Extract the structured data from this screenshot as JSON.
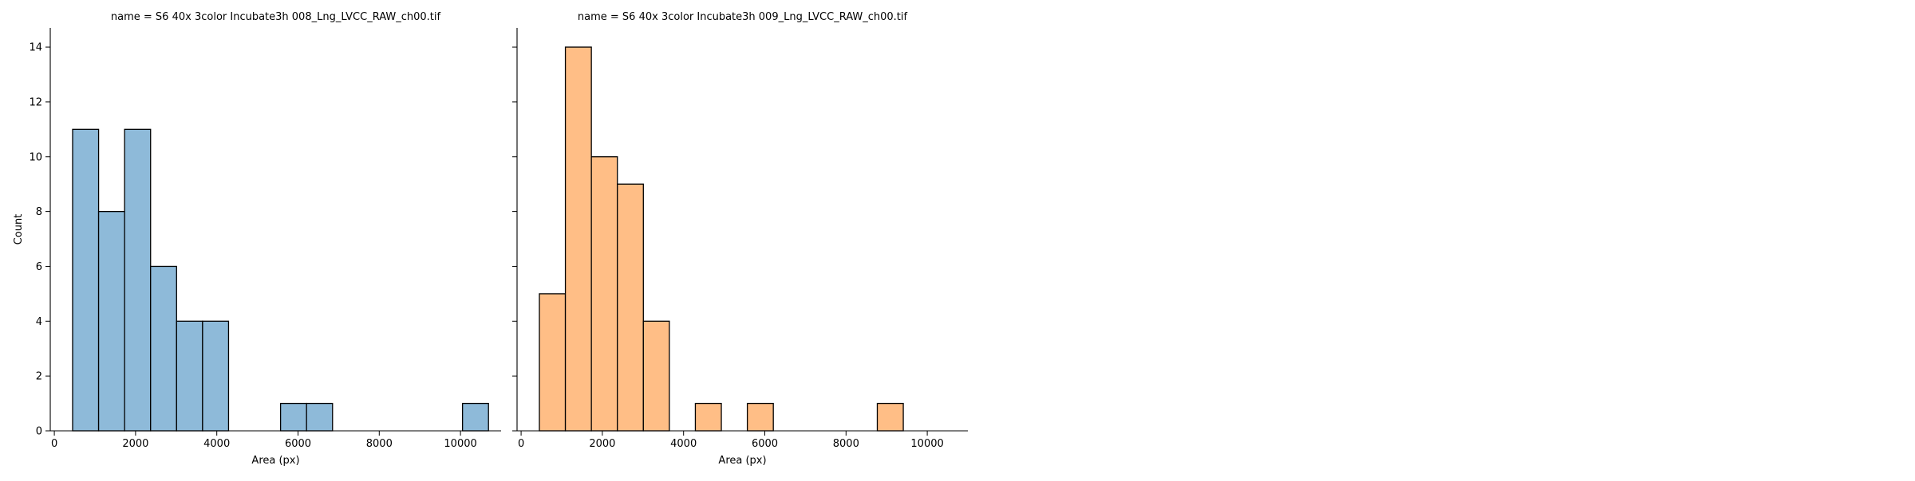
{
  "chart_data": [
    {
      "type": "bar",
      "title": "name = S6 40x 3color Incubate3h 008_Lng_LVCC_RAW_ch00.tif",
      "xlabel": "Area (px)",
      "ylabel": "Count",
      "xlim": [
        -100,
        11000
      ],
      "ylim": [
        0,
        14.7
      ],
      "xticks": [
        0,
        2000,
        4000,
        6000,
        8000,
        10000
      ],
      "yticks": [
        0,
        2,
        4,
        6,
        8,
        10,
        12,
        14
      ],
      "color": "#8ebad9",
      "bin_edges": [
        450,
        1090,
        1730,
        2370,
        3010,
        3650,
        4290,
        4930,
        5570,
        6210,
        6850,
        7490,
        8130,
        8770,
        9410,
        10050,
        10690
      ],
      "values": [
        11,
        8,
        11,
        6,
        4,
        4,
        0,
        0,
        1,
        1,
        0,
        0,
        0,
        0,
        0,
        1
      ]
    },
    {
      "type": "bar",
      "title": "name = S6 40x 3color Incubate3h 009_Lng_LVCC_RAW_ch00.tif",
      "xlabel": "Area (px)",
      "ylabel": "",
      "xlim": [
        -100,
        11000
      ],
      "ylim": [
        0,
        14.7
      ],
      "xticks": [
        0,
        2000,
        4000,
        6000,
        8000,
        10000
      ],
      "yticks": [
        0,
        2,
        4,
        6,
        8,
        10,
        12,
        14
      ],
      "color": "#ffbe86",
      "bin_edges": [
        450,
        1090,
        1730,
        2370,
        3010,
        3650,
        4290,
        4930,
        5570,
        6210,
        6850,
        7490,
        8130,
        8770,
        9410,
        10050,
        10690
      ],
      "values": [
        5,
        14,
        10,
        9,
        4,
        0,
        1,
        0,
        1,
        0,
        0,
        0,
        0,
        1,
        0,
        0
      ]
    }
  ]
}
